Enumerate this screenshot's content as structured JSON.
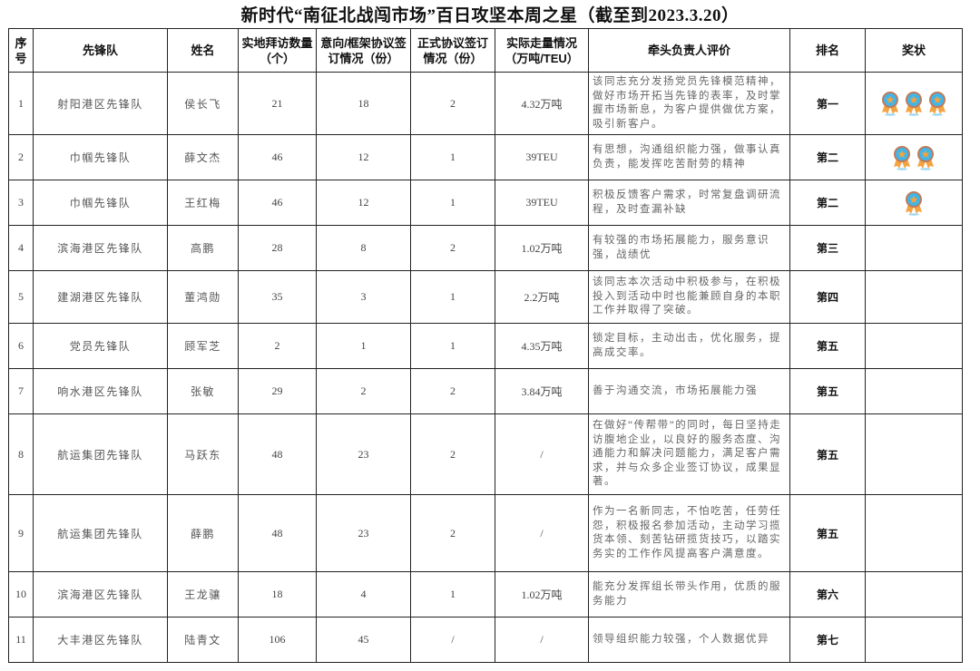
{
  "title": "新时代“南征北战闯市场”百日攻坚本周之星（截至到2023.3.20）",
  "headers": [
    "序号",
    "先锋队",
    "姓名",
    "实地拜访数量（个）",
    "意向/框架协议签订情况（份）",
    "正式协议签订情况（份）",
    "实际走量情况（万吨/TEU）",
    "牵头负责人评价",
    "排名",
    "奖状"
  ],
  "award_icon": "medal-icon",
  "colors": {
    "medal_blue": "#3fb6ea",
    "medal_ring": "#c07a5a",
    "medal_star": "#f4a340",
    "ribbon": "#f4a340"
  },
  "rows": [
    {
      "no": "1",
      "team": "射阳港区先锋队",
      "name": "侯长飞",
      "visits": "21",
      "intent": "18",
      "formal": "2",
      "volume": "4.32万吨",
      "evaluation": "该同志充分发扬党员先锋模范精神，做好市场开拓当先锋的表率，及时掌握市场新息，为客户提供做优方案，吸引新客户。",
      "rank": "第一",
      "awards": 3
    },
    {
      "no": "2",
      "team": "巾帼先锋队",
      "name": "薛文杰",
      "visits": "46",
      "intent": "12",
      "formal": "1",
      "volume": "39TEU",
      "evaluation": "有思想，沟通组织能力强，做事认真负责，能发挥吃苦耐劳的精神",
      "rank": "第二",
      "awards": 2
    },
    {
      "no": "3",
      "team": "巾帼先锋队",
      "name": "王红梅",
      "visits": "46",
      "intent": "12",
      "formal": "1",
      "volume": "39TEU",
      "evaluation": "积极反馈客户需求，时常复盘调研流程，及时查漏补缺",
      "rank": "第二",
      "awards": 1
    },
    {
      "no": "4",
      "team": "滨海港区先锋队",
      "name": "高鹏",
      "visits": "28",
      "intent": "8",
      "formal": "2",
      "volume": "1.02万吨",
      "evaluation": "有较强的市场拓展能力，服务意识强，战绩优",
      "rank": "第三",
      "awards": 0
    },
    {
      "no": "5",
      "team": "建湖港区先锋队",
      "name": "董鸿勋",
      "visits": "35",
      "intent": "3",
      "formal": "1",
      "volume": "2.2万吨",
      "evaluation": "该同志本次活动中积极参与，在积极投入到活动中时也能兼顾自身的本职工作并取得了突破。",
      "rank": "第四",
      "awards": 0
    },
    {
      "no": "6",
      "team": "党员先锋队",
      "name": "顾军芝",
      "visits": "2",
      "intent": "1",
      "formal": "1",
      "volume": "4.35万吨",
      "evaluation": "锁定目标，主动出击，优化服务，提高成交率。",
      "rank": "第五",
      "awards": 0
    },
    {
      "no": "7",
      "team": "响水港区先锋队",
      "name": "张敏",
      "visits": "29",
      "intent": "2",
      "formal": "2",
      "volume": "3.84万吨",
      "evaluation": "善于沟通交流，市场拓展能力强",
      "rank": "第五",
      "awards": 0
    },
    {
      "no": "8",
      "team": "航运集团先锋队",
      "name": "马跃东",
      "visits": "48",
      "intent": "23",
      "formal": "2",
      "volume": "/",
      "evaluation": "在做好“传帮带”的同时，每日坚持走访腹地企业，以良好的服务态度、沟通能力和解决问题能力，满足客户需求，并与众多企业签订协议，成果显著。",
      "rank": "第五",
      "awards": 0
    },
    {
      "no": "9",
      "team": "航运集团先锋队",
      "name": "薛鹏",
      "visits": "48",
      "intent": "23",
      "formal": "2",
      "volume": "/",
      "evaluation": "作为一名新同志，不怕吃苦，任劳任怨，积极报名参加活动，主动学习揽货本领、刻苦钻研揽货技巧，以踏实务实的工作作风提高客户满意度。",
      "rank": "第五",
      "awards": 0
    },
    {
      "no": "10",
      "team": "滨海港区先锋队",
      "name": "王龙骧",
      "visits": "18",
      "intent": "4",
      "formal": "1",
      "volume": "1.02万吨",
      "evaluation": "能充分发挥组长带头作用，优质的服务能力",
      "rank": "第六",
      "awards": 0
    },
    {
      "no": "11",
      "team": "大丰港区先锋队",
      "name": "陆青文",
      "visits": "106",
      "intent": "45",
      "formal": "/",
      "volume": "/",
      "evaluation": "领导组织能力较强，个人数据优异",
      "rank": "第七",
      "awards": 0
    }
  ]
}
